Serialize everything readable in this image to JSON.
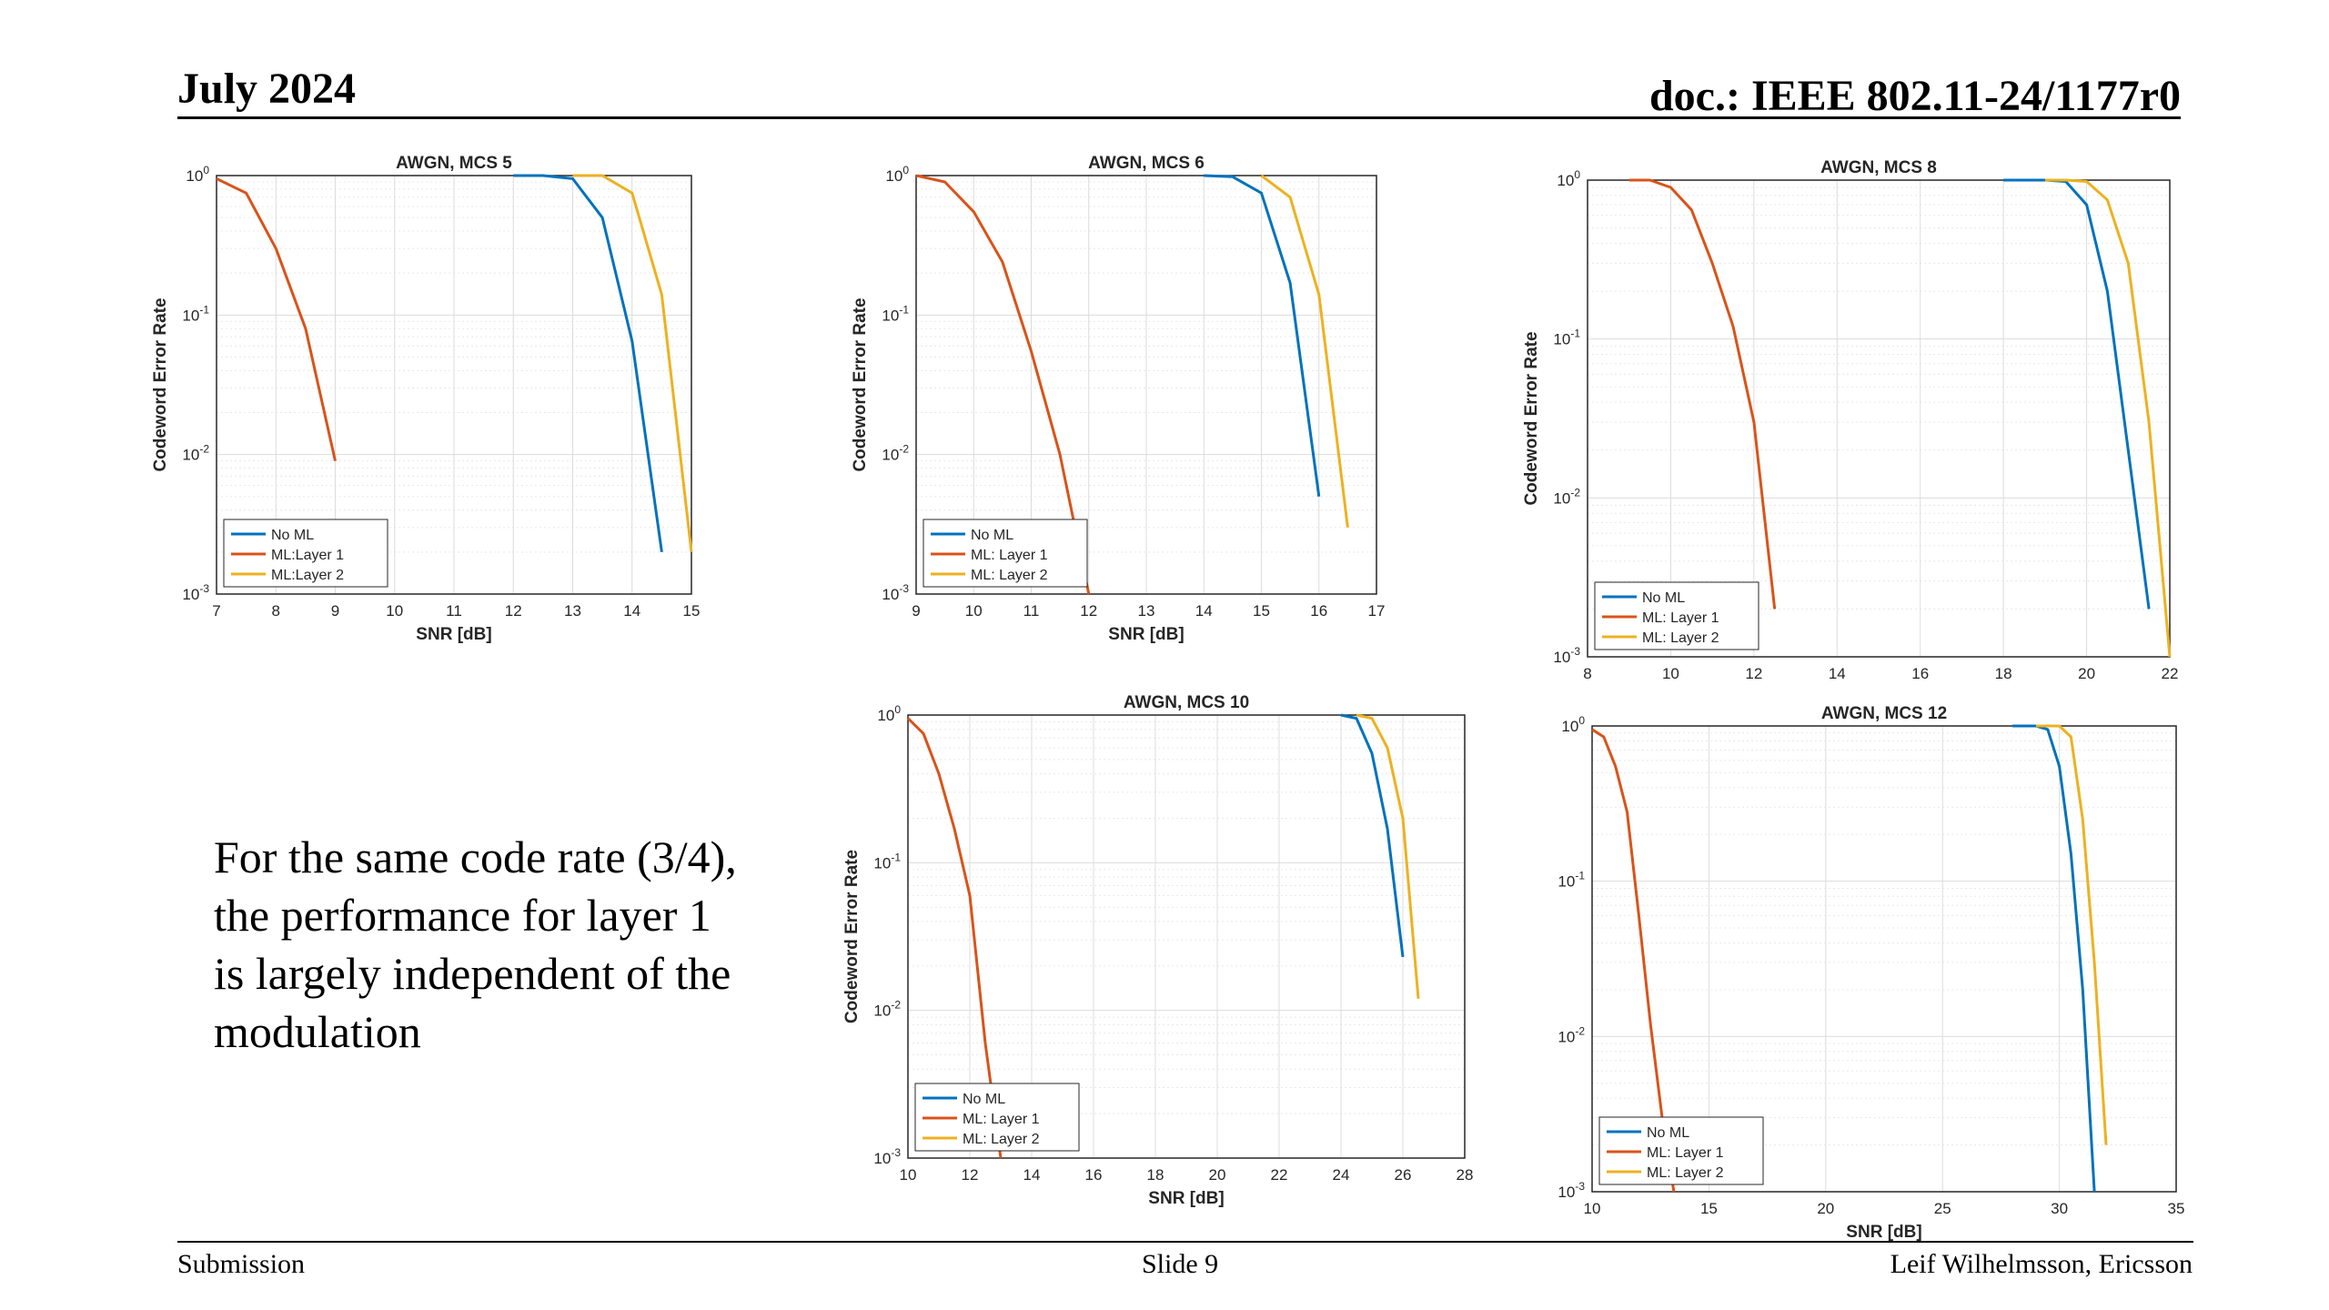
{
  "header": {
    "date": "July 2024",
    "doc": "doc.: IEEE 802.11-24/1177r0"
  },
  "footer": {
    "left": "Submission",
    "center": "Slide 9",
    "right": "Leif Wilhelmsson, Ericsson"
  },
  "body_text": {
    "lines": [
      "For the same code rate (3/4),",
      "the performance for layer 1",
      "is largely independent of the",
      "modulation"
    ]
  },
  "colors": {
    "no_ml": "#0072BD",
    "layer1": "#D95319",
    "layer2": "#EDB120"
  },
  "chart_data": [
    {
      "type": "line",
      "title": "AWGN, MCS 5",
      "xlabel": "SNR [dB]",
      "ylabel": "Codeword Error Rate",
      "xlim": [
        7,
        15
      ],
      "xticks": [
        7,
        8,
        9,
        10,
        11,
        12,
        13,
        14,
        15
      ],
      "ylim": [
        0.001,
        1
      ],
      "yscale": "log",
      "grid": true,
      "legend_position": "bottom-left",
      "series": [
        {
          "name": "No ML",
          "x": [
            12,
            12.5,
            13,
            13.5,
            14,
            14.5
          ],
          "y": [
            1,
            1,
            0.95,
            0.5,
            0.065,
            0.002
          ]
        },
        {
          "name": "ML:Layer 1",
          "x": [
            7,
            7.5,
            8,
            8.5,
            9
          ],
          "y": [
            0.95,
            0.75,
            0.3,
            0.08,
            0.009
          ]
        },
        {
          "name": "ML:Layer 2",
          "x": [
            13,
            13.5,
            14,
            14.5,
            15
          ],
          "y": [
            1,
            1,
            0.75,
            0.14,
            0.002
          ]
        }
      ]
    },
    {
      "type": "line",
      "title": "AWGN, MCS 6",
      "xlabel": "SNR [dB]",
      "ylabel": "Codeword Error Rate",
      "xlim": [
        9,
        17
      ],
      "xticks": [
        9,
        10,
        11,
        12,
        13,
        14,
        15,
        16,
        17
      ],
      "ylim": [
        0.001,
        1
      ],
      "yscale": "log",
      "grid": true,
      "legend_position": "bottom-left",
      "series": [
        {
          "name": "No ML",
          "x": [
            14,
            14.5,
            15,
            15.5,
            16
          ],
          "y": [
            1,
            0.98,
            0.75,
            0.17,
            0.005
          ]
        },
        {
          "name": "ML: Layer 1",
          "x": [
            9,
            9.5,
            10,
            10.5,
            11,
            11.5,
            12
          ],
          "y": [
            1,
            0.9,
            0.55,
            0.24,
            0.055,
            0.01,
            0.001
          ]
        },
        {
          "name": "ML: Layer 2",
          "x": [
            15,
            15.5,
            16,
            16.5
          ],
          "y": [
            1,
            0.7,
            0.14,
            0.003
          ]
        }
      ]
    },
    {
      "type": "line",
      "title": "AWGN, MCS 8",
      "xlabel": "",
      "ylabel": "Codeword Error Rate",
      "xlim": [
        8,
        22
      ],
      "xticks": [
        8,
        10,
        12,
        14,
        16,
        18,
        20,
        22
      ],
      "ylim": [
        0.001,
        1
      ],
      "yscale": "log",
      "grid": true,
      "legend_position": "bottom-left",
      "series": [
        {
          "name": "No ML",
          "x": [
            18,
            19,
            19.5,
            20,
            20.5,
            21,
            21.5
          ],
          "y": [
            1,
            1,
            0.98,
            0.7,
            0.2,
            0.02,
            0.002
          ]
        },
        {
          "name": "ML: Layer 1",
          "x": [
            9,
            9.5,
            10,
            10.5,
            11,
            11.5,
            12,
            12.5
          ],
          "y": [
            1,
            1,
            0.9,
            0.65,
            0.3,
            0.12,
            0.03,
            0.002
          ]
        },
        {
          "name": "ML: Layer 2",
          "x": [
            19,
            19.5,
            20,
            20.5,
            21,
            21.5,
            22
          ],
          "y": [
            1,
            1,
            0.98,
            0.75,
            0.3,
            0.03,
            0.001
          ]
        }
      ]
    },
    {
      "type": "line",
      "title": "AWGN, MCS 10",
      "xlabel": "SNR [dB]",
      "ylabel": "Codeword Error Rate",
      "xlim": [
        10,
        28
      ],
      "xticks": [
        10,
        12,
        14,
        16,
        18,
        20,
        22,
        24,
        26,
        28
      ],
      "ylim": [
        0.001,
        1
      ],
      "yscale": "log",
      "grid": true,
      "legend_position": "bottom-left",
      "series": [
        {
          "name": "No ML",
          "x": [
            24,
            24.5,
            25,
            25.5,
            26
          ],
          "y": [
            1,
            0.95,
            0.55,
            0.17,
            0.023
          ]
        },
        {
          "name": "ML: Layer 1",
          "x": [
            10,
            10.5,
            11,
            11.5,
            12,
            12.5,
            13
          ],
          "y": [
            0.95,
            0.75,
            0.4,
            0.17,
            0.06,
            0.006,
            0.001
          ]
        },
        {
          "name": "ML: Layer 2",
          "x": [
            24.5,
            25,
            25.5,
            26,
            26.5
          ],
          "y": [
            1,
            0.95,
            0.6,
            0.2,
            0.012
          ]
        }
      ]
    },
    {
      "type": "line",
      "title": "AWGN, MCS 12",
      "xlabel": "SNR [dB]",
      "ylabel": "",
      "xlim": [
        10,
        35
      ],
      "xticks": [
        10,
        15,
        20,
        25,
        30,
        35
      ],
      "ylim": [
        0.001,
        1
      ],
      "yscale": "log",
      "grid": true,
      "legend_position": "bottom-left",
      "series": [
        {
          "name": "No ML",
          "x": [
            28,
            29,
            29.5,
            30,
            30.5,
            31,
            31.5
          ],
          "y": [
            1,
            1,
            0.95,
            0.55,
            0.15,
            0.02,
            0.001
          ]
        },
        {
          "name": "ML: Layer 1",
          "x": [
            10,
            10.5,
            11,
            11.5,
            12,
            12.5,
            13,
            13.5
          ],
          "y": [
            0.95,
            0.85,
            0.55,
            0.28,
            0.06,
            0.012,
            0.003,
            0.001
          ]
        },
        {
          "name": "ML: Layer 2",
          "x": [
            29,
            30,
            30.5,
            31,
            31.5,
            32
          ],
          "y": [
            1,
            1,
            0.85,
            0.25,
            0.03,
            0.002
          ]
        }
      ]
    }
  ]
}
